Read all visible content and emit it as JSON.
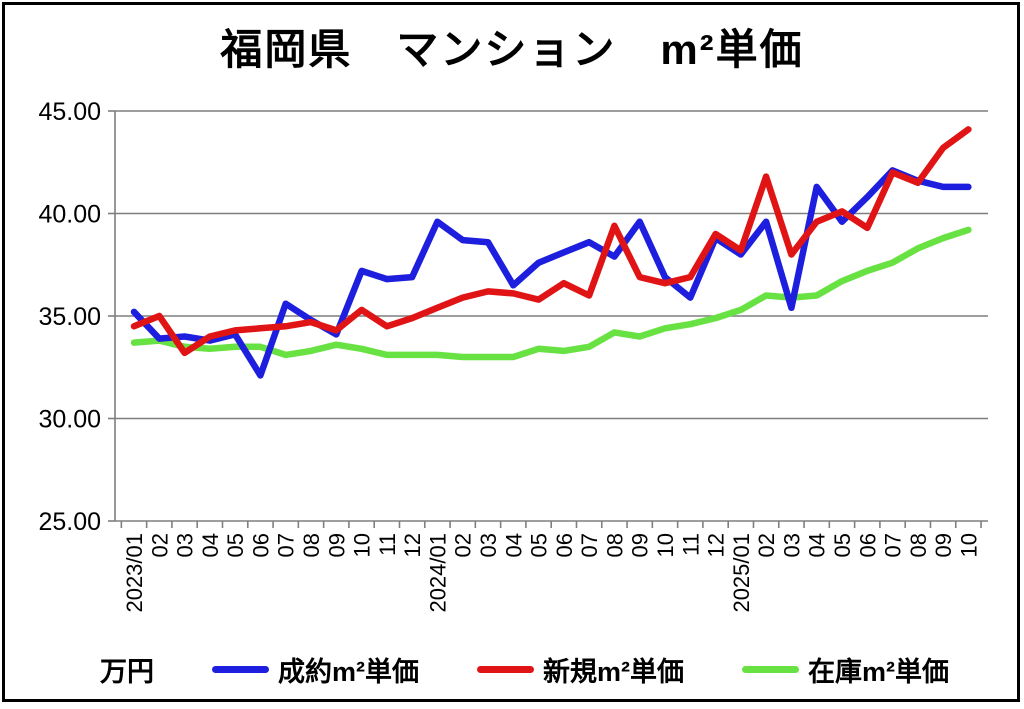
{
  "title": "福岡県　マンション　m²単価",
  "unit_label": "万円",
  "chart_data": {
    "type": "line",
    "title": "福岡県　マンション　m²単価",
    "unit": "万円",
    "xlabel": "",
    "ylabel": "万円",
    "ylim": [
      25,
      45
    ],
    "yticks": [
      25,
      30,
      35,
      40,
      45
    ],
    "ytick_labels": [
      "25.00",
      "30.00",
      "35.00",
      "40.00",
      "45.00"
    ],
    "grid": "horizontal",
    "legend_position": "bottom",
    "categories": [
      "2023/01",
      "02",
      "03",
      "04",
      "05",
      "06",
      "07",
      "08",
      "09",
      "10",
      "11",
      "12",
      "2024/01",
      "02",
      "03",
      "04",
      "05",
      "06",
      "07",
      "08",
      "09",
      "10",
      "11",
      "12",
      "2025/01",
      "02",
      "03",
      "04",
      "05",
      "06",
      "07",
      "08",
      "09",
      "10"
    ],
    "series": [
      {
        "key": "seiyaku",
        "name": "成約m²単価",
        "color": "#1e1ede",
        "values": [
          35.2,
          33.9,
          34.0,
          33.8,
          34.1,
          32.1,
          35.6,
          34.8,
          34.1,
          37.2,
          36.8,
          36.9,
          39.6,
          38.7,
          38.6,
          36.5,
          37.6,
          38.1,
          38.6,
          37.9,
          39.6,
          36.9,
          35.9,
          38.8,
          38.0,
          39.6,
          35.4,
          41.3,
          39.6,
          40.8,
          42.1,
          41.6,
          41.3,
          41.3
        ]
      },
      {
        "key": "shinki",
        "name": "新規m²単価",
        "color": "#e01414",
        "values": [
          34.5,
          35.0,
          33.2,
          34.0,
          34.3,
          34.4,
          34.5,
          34.7,
          34.3,
          35.3,
          34.5,
          34.9,
          35.4,
          35.9,
          36.2,
          36.1,
          35.8,
          36.6,
          36.0,
          39.4,
          36.9,
          36.6,
          36.9,
          39.0,
          38.2,
          41.8,
          38.0,
          39.6,
          40.1,
          39.3,
          42.0,
          41.5,
          43.2,
          44.1
        ]
      },
      {
        "key": "zaiko",
        "name": "在庫m²単価",
        "color": "#68e243",
        "values": [
          33.7,
          33.8,
          33.5,
          33.4,
          33.5,
          33.5,
          33.1,
          33.3,
          33.6,
          33.4,
          33.1,
          33.1,
          33.1,
          33.0,
          33.0,
          33.0,
          33.4,
          33.3,
          33.5,
          34.2,
          34.0,
          34.4,
          34.6,
          34.9,
          35.3,
          36.0,
          35.9,
          36.0,
          36.7,
          37.2,
          37.6,
          38.3,
          38.8,
          39.2
        ]
      }
    ],
    "axis_color": "#7f7f7f",
    "label_color": "#000000"
  }
}
